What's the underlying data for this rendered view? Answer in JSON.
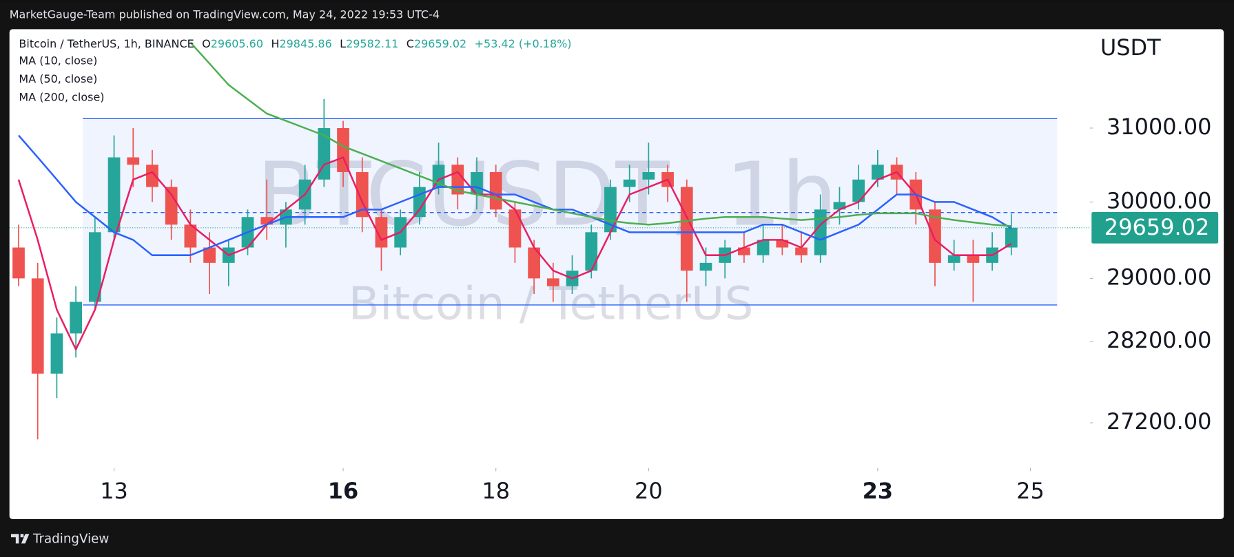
{
  "top_bar": {
    "text": "MarketGauge-Team published on TradingView.com, May 24, 2022 19:53 UTC-4"
  },
  "footer": {
    "brand": "TradingView"
  },
  "chart_data": {
    "type": "candlestick",
    "title": "Bitcoin / TetherUS, 1h, BINANCE",
    "readings": [
      {
        "label": "O",
        "value": "29605.60"
      },
      {
        "label": "H",
        "value": "29845.86"
      },
      {
        "label": "L",
        "value": "29582.11"
      },
      {
        "label": "C",
        "value": "29659.02"
      },
      {
        "label": "",
        "value": "+53.42 (+0.18%)"
      }
    ],
    "watermark": [
      "BTCUSDT, 1h",
      "Bitcoin / TetherUS"
    ],
    "y_axis_label": "USDT",
    "last_price": 29659.02,
    "up_color": "#26a69a",
    "down_color": "#ef5350",
    "log": true,
    "grid": false,
    "xlim": [
      11.63,
      25.78
    ],
    "ylim": [
      26660,
      32390
    ],
    "xticks": [
      13,
      16,
      18,
      20,
      23,
      25
    ],
    "xticks_bold": [
      false,
      true,
      false,
      false,
      true,
      false
    ],
    "yticks": [
      {
        "value": 31000,
        "label": "31000.00"
      },
      {
        "value": 30000,
        "label": "30000.00"
      },
      {
        "value": 29000,
        "label": "29000.00"
      },
      {
        "value": 28200,
        "label": "28200.00"
      },
      {
        "value": 27200,
        "label": "27200.00"
      }
    ],
    "range_box": {
      "x": [
        12.59,
        25.35
      ],
      "y": [
        31130,
        28660
      ],
      "mid": 29860,
      "color": "#2962ff"
    },
    "x": [
      11.75,
      12,
      12.25,
      12.5,
      12.75,
      13,
      13.25,
      13.5,
      13.75,
      14,
      14.25,
      14.5,
      14.75,
      15,
      15.25,
      15.5,
      15.75,
      16,
      16.25,
      16.5,
      16.75,
      17,
      17.25,
      17.5,
      17.75,
      18,
      18.25,
      18.5,
      18.75,
      19,
      19.25,
      19.5,
      19.75,
      20,
      20.25,
      20.5,
      20.75,
      21,
      21.25,
      21.5,
      21.75,
      22,
      22.25,
      22.5,
      22.75,
      23,
      23.25,
      23.5,
      23.75,
      24,
      24.25,
      24.5,
      24.75
    ],
    "ohlc": [
      [
        29400,
        29700,
        28900,
        29000
      ],
      [
        29000,
        29200,
        27000,
        27800
      ],
      [
        27800,
        28500,
        27500,
        28300
      ],
      [
        28300,
        28900,
        28000,
        28700
      ],
      [
        28700,
        29800,
        28600,
        29600
      ],
      [
        29600,
        30900,
        29500,
        30600
      ],
      [
        30600,
        31000,
        30200,
        30500
      ],
      [
        30500,
        30700,
        30000,
        30200
      ],
      [
        30200,
        30300,
        29500,
        29700
      ],
      [
        29700,
        29900,
        29200,
        29400
      ],
      [
        29400,
        29600,
        28800,
        29200
      ],
      [
        29200,
        29500,
        28900,
        29400
      ],
      [
        29400,
        29900,
        29300,
        29800
      ],
      [
        29800,
        30300,
        29500,
        29700
      ],
      [
        29700,
        30000,
        29400,
        29900
      ],
      [
        29900,
        30500,
        29700,
        30300
      ],
      [
        30300,
        31400,
        30200,
        31000
      ],
      [
        31000,
        31100,
        30200,
        30400
      ],
      [
        30400,
        30600,
        29600,
        29800
      ],
      [
        29800,
        29900,
        29100,
        29400
      ],
      [
        29400,
        29900,
        29300,
        29800
      ],
      [
        29800,
        30400,
        29700,
        30200
      ],
      [
        30200,
        30800,
        30100,
        30500
      ],
      [
        30500,
        30600,
        29900,
        30100
      ],
      [
        30100,
        30600,
        29900,
        30400
      ],
      [
        30400,
        30500,
        29800,
        29900
      ],
      [
        29900,
        30000,
        29200,
        29400
      ],
      [
        29400,
        29500,
        28800,
        29000
      ],
      [
        29000,
        29200,
        28700,
        28900
      ],
      [
        28900,
        29300,
        28800,
        29100
      ],
      [
        29100,
        29700,
        29000,
        29600
      ],
      [
        29600,
        30300,
        29500,
        30200
      ],
      [
        30200,
        30500,
        30000,
        30300
      ],
      [
        30300,
        30800,
        30100,
        30400
      ],
      [
        30400,
        30500,
        30000,
        30200
      ],
      [
        30200,
        30300,
        28700,
        29100
      ],
      [
        29100,
        29400,
        28900,
        29200
      ],
      [
        29200,
        29500,
        29000,
        29400
      ],
      [
        29400,
        29600,
        29200,
        29300
      ],
      [
        29300,
        29700,
        29200,
        29500
      ],
      [
        29500,
        29700,
        29300,
        29400
      ],
      [
        29400,
        29600,
        29200,
        29300
      ],
      [
        29300,
        30100,
        29200,
        29900
      ],
      [
        29900,
        30200,
        29700,
        30000
      ],
      [
        30000,
        30500,
        29900,
        30300
      ],
      [
        30300,
        30700,
        30200,
        30500
      ],
      [
        30500,
        30600,
        30100,
        30300
      ],
      [
        30300,
        30400,
        29700,
        29900
      ],
      [
        29900,
        30000,
        28900,
        29200
      ],
      [
        29200,
        29500,
        29100,
        29300
      ],
      [
        29300,
        29500,
        28700,
        29200
      ],
      [
        29200,
        29600,
        29100,
        29400
      ],
      [
        29400,
        29845.86,
        29300,
        29659.02
      ]
    ],
    "series": [
      {
        "name": "MA (10, close)",
        "color": "#e91e63",
        "values": [
          30300,
          29500,
          28600,
          28100,
          28600,
          29500,
          30300,
          30400,
          30100,
          29700,
          29500,
          29300,
          29400,
          29700,
          29900,
          30100,
          30500,
          30600,
          30000,
          29500,
          29600,
          29900,
          30300,
          30400,
          30100,
          30100,
          29900,
          29400,
          29100,
          29000,
          29100,
          29600,
          30100,
          30200,
          30300,
          29800,
          29300,
          29300,
          29400,
          29500,
          29500,
          29400,
          29700,
          29900,
          30000,
          30300,
          30400,
          30100,
          29500,
          29300,
          29300,
          29300,
          29450
        ]
      },
      {
        "name": "MA (50, close)",
        "color": "#2962ff",
        "values": [
          30900,
          30600,
          30300,
          30000,
          29800,
          29600,
          29500,
          29300,
          29300,
          29300,
          29400,
          29500,
          29600,
          29700,
          29800,
          29800,
          29800,
          29800,
          29900,
          29900,
          30000,
          30100,
          30200,
          30200,
          30200,
          30100,
          30100,
          30000,
          29900,
          29900,
          29800,
          29700,
          29600,
          29600,
          29600,
          29600,
          29600,
          29600,
          29600,
          29700,
          29700,
          29600,
          29500,
          29600,
          29700,
          29900,
          30100,
          30100,
          30000,
          30000,
          29900,
          29800,
          29650
        ]
      },
      {
        "name": "MA (200, close)",
        "color": "#4caf50",
        "values": [
          null,
          null,
          null,
          null,
          null,
          null,
          null,
          null,
          null,
          32200,
          31900,
          31600,
          31400,
          31200,
          31100,
          31000,
          30900,
          30750,
          30650,
          30550,
          30450,
          30350,
          30250,
          30150,
          30100,
          30050,
          30000,
          29950,
          29900,
          29850,
          29800,
          29750,
          29720,
          29700,
          29720,
          29750,
          29780,
          29800,
          29800,
          29800,
          29780,
          29760,
          29780,
          29800,
          29830,
          29850,
          29850,
          29850,
          29800,
          29760,
          29730,
          29700,
          29680
        ]
      }
    ]
  }
}
